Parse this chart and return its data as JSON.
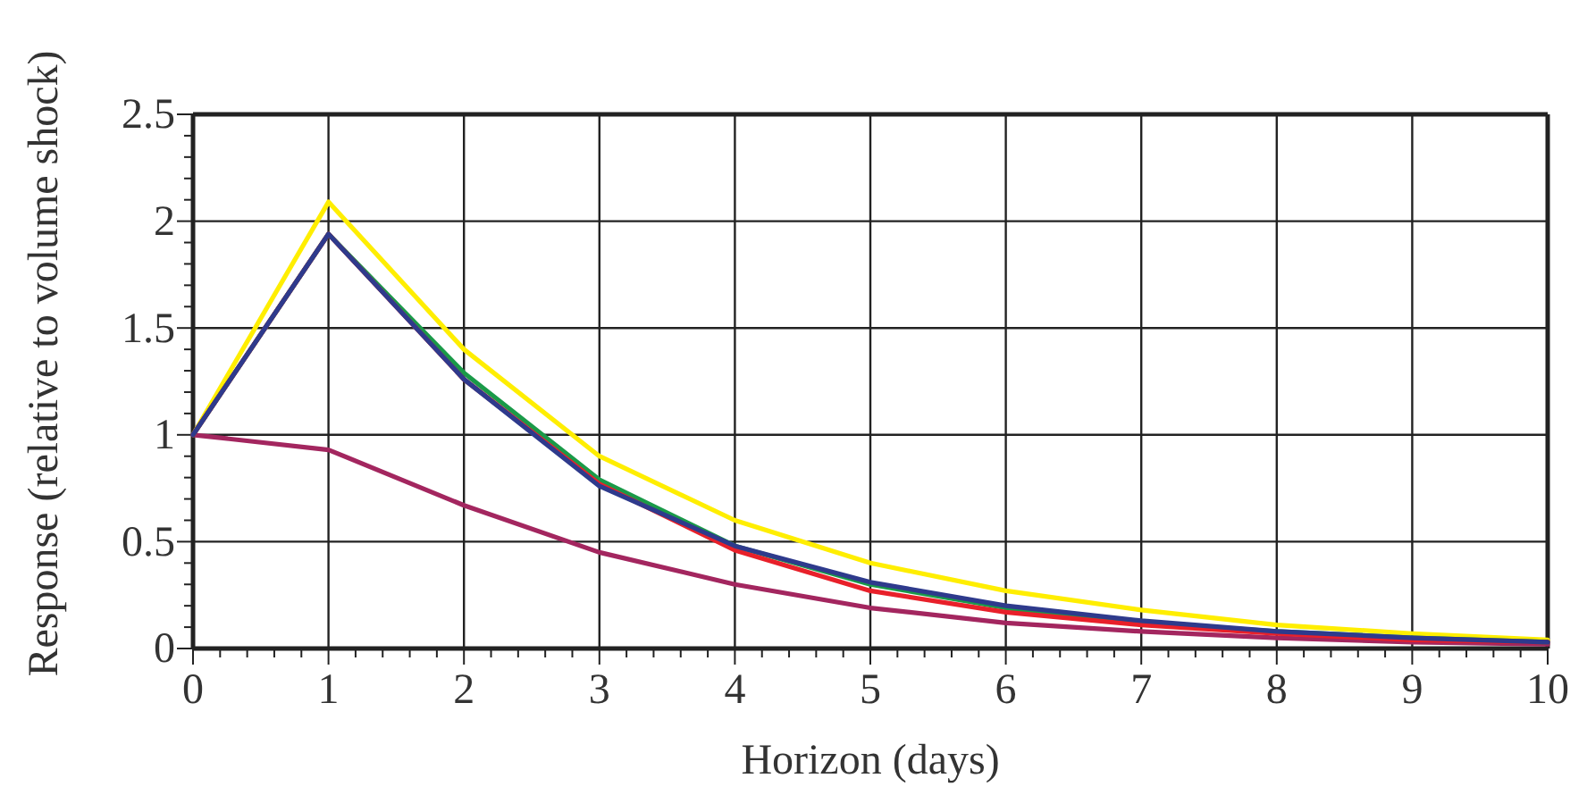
{
  "chart_data": {
    "type": "line",
    "xlabel": "Horizon (days)",
    "ylabel": "Response (relative to volume shock)",
    "x": [
      0,
      1,
      2,
      3,
      4,
      5,
      6,
      7,
      8,
      9,
      10
    ],
    "series": [
      {
        "color": "#a3265f",
        "values": [
          1,
          0.93,
          0.67,
          0.45,
          0.3,
          0.19,
          0.12,
          0.08,
          0.05,
          0.03,
          0.02
        ]
      },
      {
        "color": "#ffee00",
        "values": [
          1,
          2.09,
          1.4,
          0.9,
          0.6,
          0.4,
          0.27,
          0.18,
          0.11,
          0.07,
          0.04
        ]
      },
      {
        "color": "#1a9a48",
        "values": [
          1,
          1.94,
          1.29,
          0.79,
          0.48,
          0.3,
          0.19,
          0.12,
          0.08,
          0.05,
          0.03
        ]
      },
      {
        "color": "#e8202a",
        "values": [
          1,
          1.94,
          1.26,
          0.77,
          0.46,
          0.27,
          0.17,
          0.11,
          0.07,
          0.04,
          0.03
        ]
      },
      {
        "color": "#2e3a8c",
        "values": [
          1,
          1.94,
          1.26,
          0.76,
          0.48,
          0.31,
          0.2,
          0.13,
          0.08,
          0.05,
          0.03
        ]
      }
    ],
    "xlim": [
      0,
      10
    ],
    "ylim": [
      0,
      2.5
    ],
    "xticks": [
      0,
      {
        "value": 0.2,
        "label": null
      },
      {
        "value": 0.4,
        "label": null
      },
      {
        "value": 0.6,
        "label": null
      },
      {
        "value": 0.8,
        "label": null
      },
      1,
      {
        "value": 1.2,
        "label": null
      },
      {
        "value": 1.4,
        "label": null
      },
      {
        "value": 1.6,
        "label": null
      },
      {
        "value": 1.8,
        "label": null
      },
      2,
      {
        "value": 2.2,
        "label": null
      },
      {
        "value": 2.4,
        "label": null
      },
      {
        "value": 2.6,
        "label": null
      },
      {
        "value": 2.8,
        "label": null
      },
      3,
      {
        "value": 3.2,
        "label": null
      },
      {
        "value": 3.4,
        "label": null
      },
      {
        "value": 3.6,
        "label": null
      },
      {
        "value": 3.8,
        "label": null
      },
      4,
      {
        "value": 4.2,
        "label": null
      },
      {
        "value": 4.4,
        "label": null
      },
      {
        "value": 4.6,
        "label": null
      },
      {
        "value": 4.8,
        "label": null
      },
      5,
      {
        "value": 5.2,
        "label": null
      },
      {
        "value": 5.4,
        "label": null
      },
      {
        "value": 5.6,
        "label": null
      },
      {
        "value": 5.8,
        "label": null
      },
      6,
      {
        "value": 6.2,
        "label": null
      },
      {
        "value": 6.4,
        "label": null
      },
      {
        "value": 6.6,
        "label": null
      },
      {
        "value": 6.8,
        "label": null
      },
      7,
      {
        "value": 7.2,
        "label": null
      },
      {
        "value": 7.4,
        "label": null
      },
      {
        "value": 7.6,
        "label": null
      },
      {
        "value": 7.8,
        "label": null
      },
      8,
      {
        "value": 8.2,
        "label": null
      },
      {
        "value": 8.4,
        "label": null
      },
      {
        "value": 8.6,
        "label": null
      },
      {
        "value": 8.8,
        "label": null
      },
      9,
      {
        "value": 9.2,
        "label": null
      },
      {
        "value": 9.4,
        "label": null
      },
      {
        "value": 9.6,
        "label": null
      },
      {
        "value": 9.8,
        "label": null
      },
      10
    ],
    "yticks": [
      0,
      {
        "value": 0.1,
        "label": null
      },
      {
        "value": 0.2,
        "label": null
      },
      {
        "value": 0.3,
        "label": null
      },
      {
        "value": 0.4,
        "label": null
      },
      0.5,
      {
        "value": 0.6,
        "label": null
      },
      {
        "value": 0.7,
        "label": null
      },
      {
        "value": 0.8,
        "label": null
      },
      {
        "value": 0.9,
        "label": null
      },
      1,
      {
        "value": 1.1,
        "label": null
      },
      {
        "value": 1.2,
        "label": null
      },
      {
        "value": 1.3,
        "label": null
      },
      {
        "value": 1.4,
        "label": null
      },
      1.5,
      {
        "value": 1.6,
        "label": null
      },
      {
        "value": 1.7,
        "label": null
      },
      {
        "value": 1.8,
        "label": null
      },
      {
        "value": 1.9,
        "label": null
      },
      2,
      {
        "value": 2.1,
        "label": null
      },
      {
        "value": 2.2,
        "label": null
      },
      {
        "value": 2.3,
        "label": null
      },
      {
        "value": 2.4,
        "label": null
      },
      2.5
    ],
    "grid": true,
    "marker": "none",
    "line_style": "solid"
  }
}
